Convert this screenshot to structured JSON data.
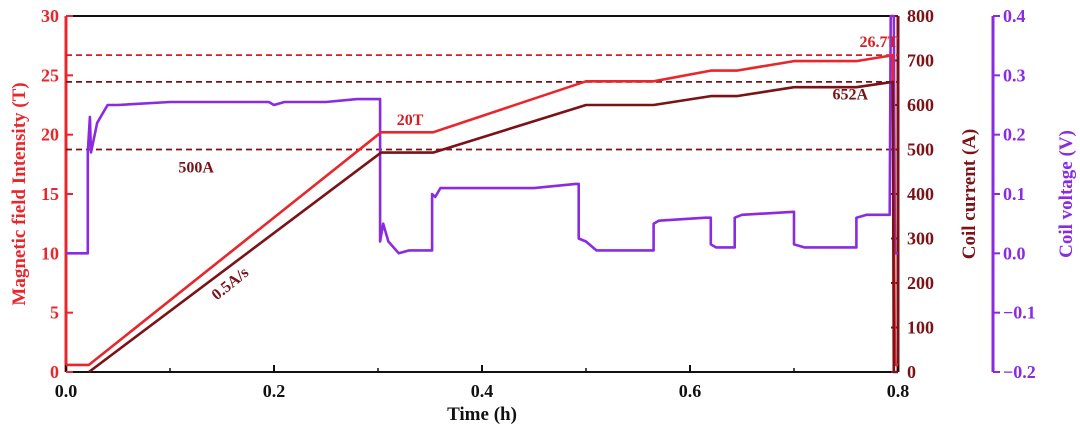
{
  "chart_data": {
    "type": "line",
    "xlabel": "Time (h)",
    "xlim": [
      0.0,
      0.8
    ],
    "xticks": [
      0.0,
      0.2,
      0.4,
      0.6,
      0.8
    ],
    "xtick_labels": [
      "0.0",
      "0.2",
      "0.4",
      "0.6",
      "0.8"
    ],
    "axes": {
      "field": {
        "label": "Magnetic field Intensity (T)",
        "lim": [
          0,
          30
        ],
        "ticks": [
          0,
          5,
          10,
          15,
          20,
          25,
          30
        ],
        "tick_labels": [
          "0",
          "5",
          "10",
          "15",
          "20",
          "25",
          "30"
        ],
        "color": "#e8262c"
      },
      "current": {
        "label": "Coil current (A)",
        "lim": [
          0,
          800
        ],
        "ticks": [
          0,
          100,
          200,
          300,
          400,
          500,
          600,
          700,
          800
        ],
        "tick_labels": [
          "0",
          "100",
          "200",
          "300",
          "400",
          "500",
          "600",
          "700",
          "800"
        ],
        "color": "#7a1216"
      },
      "voltage": {
        "label": "Coil voltage (V)",
        "lim": [
          -0.2,
          0.4
        ],
        "ticks": [
          -0.2,
          -0.1,
          0.0,
          0.1,
          0.2,
          0.3,
          0.4
        ],
        "tick_labels": [
          "−0.2",
          "−0.1",
          "0.0",
          "0.1",
          "0.2",
          "0.3",
          "0.4"
        ],
        "color": "#8a2be2"
      }
    },
    "series": [
      {
        "axis": "field",
        "color": "#e8262c",
        "x": [
          0.0,
          0.022,
          0.303,
          0.353,
          0.5,
          0.565,
          0.62,
          0.645,
          0.7,
          0.76,
          0.795,
          0.797,
          0.8
        ],
        "y": [
          0.6,
          0.6,
          20.2,
          20.2,
          24.5,
          24.5,
          25.4,
          25.4,
          26.2,
          26.2,
          26.7,
          0.6,
          0.6
        ]
      },
      {
        "axis": "current",
        "color": "#7a1216",
        "x": [
          0.022,
          0.303,
          0.353,
          0.5,
          0.565,
          0.62,
          0.645,
          0.7,
          0.76,
          0.795,
          0.796,
          0.8
        ],
        "y": [
          0,
          493,
          493,
          600,
          600,
          620,
          620,
          640,
          640,
          652,
          0,
          0
        ]
      },
      {
        "axis": "voltage",
        "color": "#8a2be2",
        "x": [
          0.0,
          0.021,
          0.021,
          0.023,
          0.024,
          0.03,
          0.04,
          0.05,
          0.1,
          0.15,
          0.195,
          0.2,
          0.21,
          0.25,
          0.28,
          0.3,
          0.302,
          0.302,
          0.305,
          0.31,
          0.32,
          0.33,
          0.352,
          0.352,
          0.355,
          0.36,
          0.4,
          0.45,
          0.49,
          0.493,
          0.493,
          0.5,
          0.51,
          0.55,
          0.565,
          0.565,
          0.57,
          0.615,
          0.62,
          0.62,
          0.625,
          0.64,
          0.643,
          0.643,
          0.65,
          0.7,
          0.7,
          0.71,
          0.755,
          0.76,
          0.76,
          0.77,
          0.79,
          0.792,
          0.793,
          0.796,
          0.797,
          0.8
        ],
        "y": [
          0.0,
          0.0,
          0.17,
          0.23,
          0.17,
          0.22,
          0.25,
          0.25,
          0.255,
          0.255,
          0.255,
          0.25,
          0.255,
          0.255,
          0.26,
          0.26,
          0.26,
          0.02,
          0.05,
          0.02,
          0.0,
          0.005,
          0.005,
          0.1,
          0.095,
          0.11,
          0.11,
          0.11,
          0.117,
          0.117,
          0.025,
          0.02,
          0.005,
          0.005,
          0.005,
          0.05,
          0.055,
          0.06,
          0.06,
          0.015,
          0.01,
          0.01,
          0.01,
          0.06,
          0.065,
          0.07,
          0.015,
          0.01,
          0.01,
          0.01,
          0.06,
          0.065,
          0.065,
          0.065,
          0.4,
          0.4,
          0.0,
          0.0
        ]
      }
    ],
    "reference_lines": [
      {
        "axis": "field",
        "value": 26.7,
        "color": "#d21f26"
      },
      {
        "axis": "current",
        "value": 652,
        "color": "#7a1216"
      },
      {
        "axis": "current",
        "value": 500,
        "color": "#7a1216"
      }
    ],
    "annotations": [
      {
        "text": "26.7T",
        "color": "#d21f26"
      },
      {
        "text": "652A",
        "color": "#7a1216"
      },
      {
        "text": "20T",
        "color": "#d21f26"
      },
      {
        "text": "500A",
        "color": "#7a1216"
      },
      {
        "text": "0.5A/s",
        "color": "#7a1216"
      }
    ],
    "grid": false
  }
}
